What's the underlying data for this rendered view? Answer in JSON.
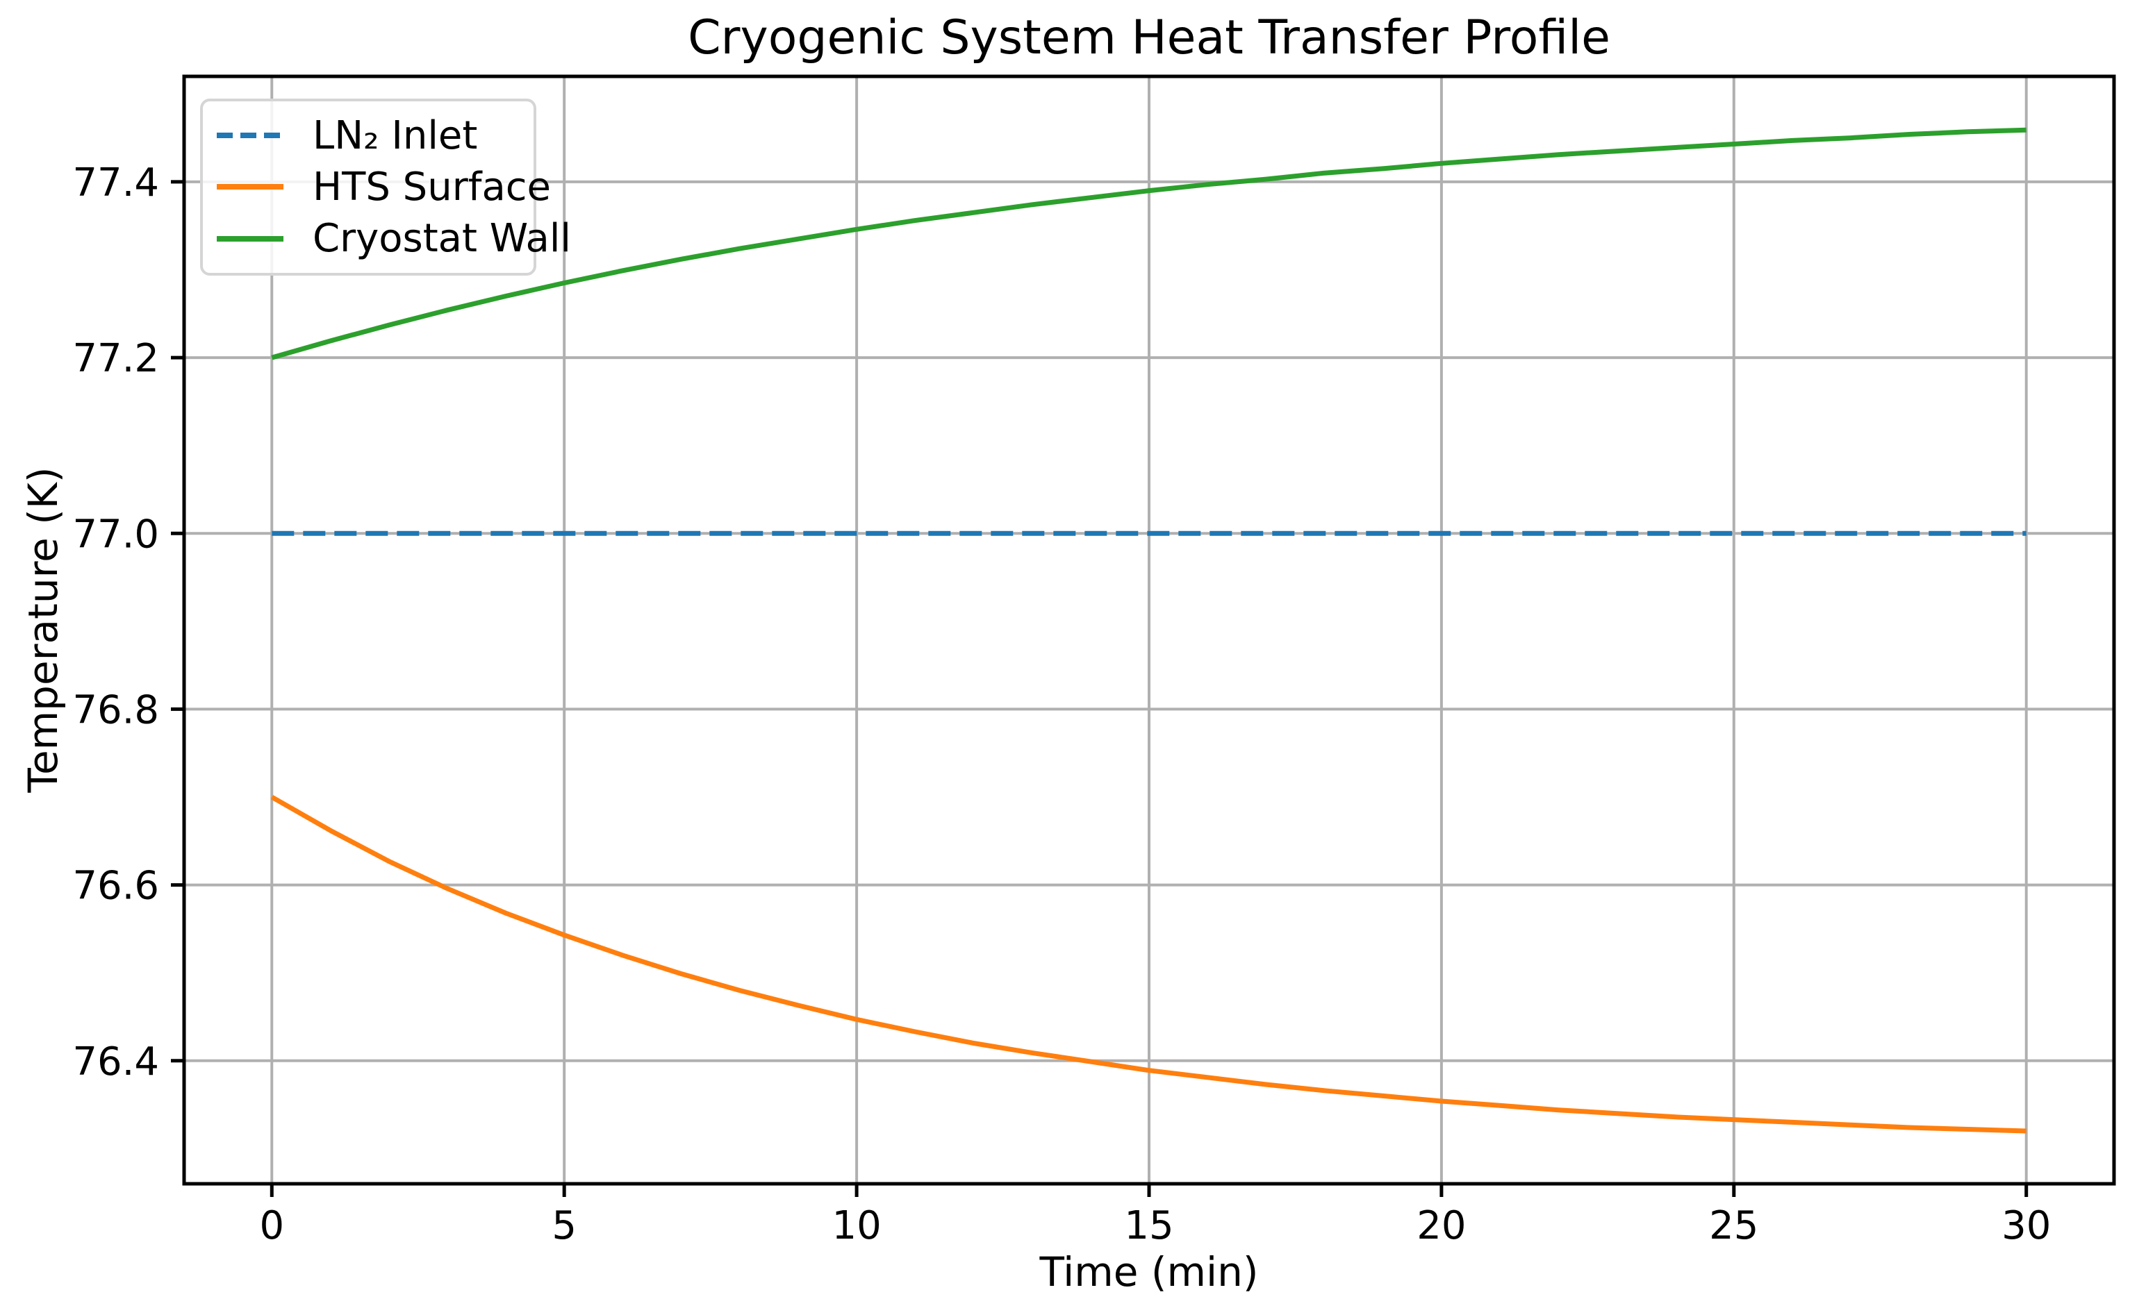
{
  "chart_data": {
    "type": "line",
    "title": "Cryogenic System Heat Transfer Profile",
    "xlabel": "Time (min)",
    "ylabel": "Temperature (K)",
    "xlim": [
      -1.5,
      31.5
    ],
    "ylim": [
      76.26,
      77.52
    ],
    "grid": true,
    "grid_color": "#b0b0b0",
    "spine_color": "#000000",
    "background_color": "#ffffff",
    "x_ticks": [
      0,
      5,
      10,
      15,
      20,
      25,
      30
    ],
    "x_tick_labels": [
      "0",
      "5",
      "10",
      "15",
      "20",
      "25",
      "30"
    ],
    "y_ticks": [
      76.4,
      76.6,
      76.8,
      77.0,
      77.2,
      77.4
    ],
    "y_tick_labels": [
      "76.4",
      "76.6",
      "76.8",
      "77.0",
      "77.2",
      "77.4"
    ],
    "legend": {
      "position": "upper left",
      "entries": [
        "LN₂ Inlet",
        "HTS Surface",
        "Cryostat Wall"
      ]
    },
    "x": [
      0,
      1,
      2,
      3,
      4,
      5,
      6,
      7,
      8,
      9,
      10,
      11,
      12,
      13,
      14,
      15,
      16,
      17,
      18,
      19,
      20,
      21,
      22,
      23,
      24,
      25,
      26,
      27,
      28,
      29,
      30
    ],
    "series": [
      {
        "name": "LN₂ Inlet",
        "color": "#1f77b4",
        "style": "dashed",
        "values": [
          77.0,
          77.0,
          77.0,
          77.0,
          77.0,
          77.0,
          77.0,
          77.0,
          77.0,
          77.0,
          77.0,
          77.0,
          77.0,
          77.0,
          77.0,
          77.0,
          77.0,
          77.0,
          77.0,
          77.0,
          77.0,
          77.0,
          77.0,
          77.0,
          77.0,
          77.0,
          77.0,
          77.0,
          77.0,
          77.0,
          77.0
        ]
      },
      {
        "name": "HTS Surface",
        "color": "#ff7f0e",
        "style": "solid",
        "values": [
          76.7,
          76.662,
          76.627,
          76.596,
          76.568,
          76.543,
          76.52,
          76.499,
          76.48,
          76.463,
          76.447,
          76.433,
          76.42,
          76.409,
          76.399,
          76.389,
          76.381,
          76.373,
          76.366,
          76.36,
          76.354,
          76.349,
          76.344,
          76.34,
          76.336,
          76.333,
          76.33,
          76.327,
          76.324,
          76.322,
          76.32
        ]
      },
      {
        "name": "Cryostat Wall",
        "color": "#2ca02c",
        "style": "solid",
        "values": [
          77.2,
          77.219,
          77.237,
          77.254,
          77.27,
          77.285,
          77.299,
          77.312,
          77.324,
          77.335,
          77.346,
          77.356,
          77.365,
          77.374,
          77.382,
          77.39,
          77.397,
          77.403,
          77.41,
          77.415,
          77.421,
          77.426,
          77.431,
          77.435,
          77.439,
          77.443,
          77.447,
          77.45,
          77.454,
          77.457,
          77.459
        ]
      }
    ]
  }
}
